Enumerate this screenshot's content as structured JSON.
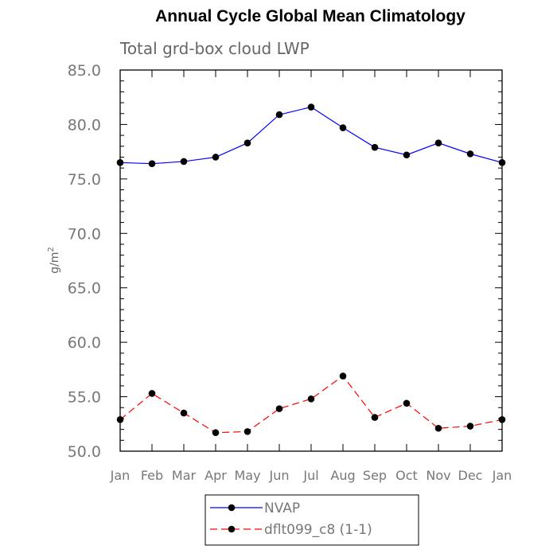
{
  "chart_data": {
    "type": "line",
    "title": "Annual Cycle Global Mean Climatology",
    "subtitle": "Total grd-box cloud LWP",
    "ylabel": "g/m²",
    "ylabel_base": "g/m",
    "ylabel_sup": "2",
    "xlabel": "",
    "categories": [
      "Jan",
      "Feb",
      "Mar",
      "Apr",
      "May",
      "Jun",
      "Jul",
      "Aug",
      "Sep",
      "Oct",
      "Nov",
      "Dec",
      "Jan"
    ],
    "ylim": [
      50.0,
      85.0
    ],
    "yticks": [
      "50.0",
      "55.0",
      "60.0",
      "65.0",
      "70.0",
      "75.0",
      "80.0",
      "85.0"
    ],
    "grid": false,
    "legend_position": "bottom-center",
    "series": [
      {
        "name": "NVAP",
        "color": "#0000ff",
        "dash": "solid",
        "values": [
          76.5,
          76.4,
          76.6,
          77.0,
          78.3,
          80.9,
          81.6,
          79.7,
          77.9,
          77.2,
          78.3,
          77.3,
          76.5
        ]
      },
      {
        "name": "dflt099_c8 (1-1)",
        "color": "#ff0000",
        "dash": "dashed",
        "values": [
          52.9,
          55.3,
          53.5,
          51.7,
          51.8,
          53.9,
          54.8,
          56.9,
          53.1,
          54.4,
          52.1,
          52.3,
          52.9
        ]
      }
    ]
  }
}
